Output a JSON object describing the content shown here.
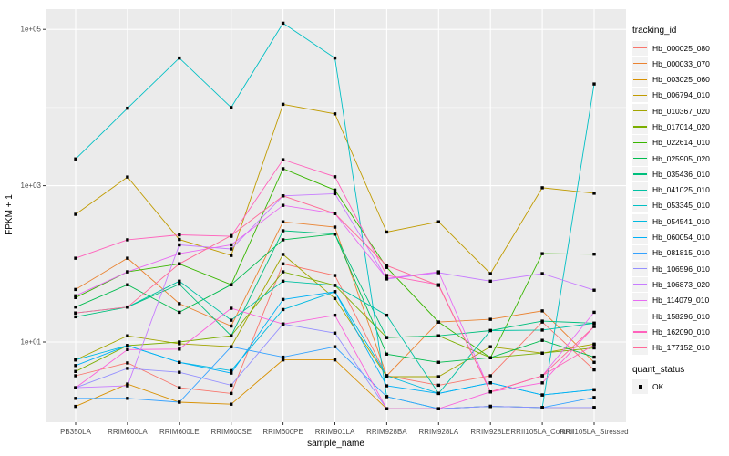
{
  "chart_data": {
    "type": "line",
    "title": "",
    "xlabel": "sample_name",
    "ylabel": "FPKM + 1",
    "x_categories": [
      "PB350LA",
      "RRIM600LA",
      "RRIM600LE",
      "RRIM600SE",
      "RRIM600PE",
      "RRIM901LA",
      "RRIM928BA",
      "RRIM928LA",
      "RRIM928LE",
      "RRII105LA_Control",
      "RRII105LA_Stressed"
    ],
    "y_axis": {
      "scale": "log10",
      "ticks": [
        {
          "label": "1e+05",
          "value": 100000
        },
        {
          "label": "1e+03",
          "value": 1000
        },
        {
          "label": "1e+01",
          "value": 10
        }
      ],
      "minor_breaks": [
        10000,
        100,
        1
      ],
      "ylim": [
        1,
        130000
      ]
    },
    "grid": true,
    "legend_position": "right",
    "panel_bg": "#EBEBEB",
    "grid_color": "#FFFFFF",
    "tick_text_color": "#4D4D4D",
    "point_marker": "filled-black-square",
    "legend": {
      "series_title": "tracking_id",
      "shape_title": "quant_status",
      "shape_items": [
        {
          "label": "OK",
          "shape": "black-square"
        }
      ]
    },
    "series": [
      {
        "name": "Hb_000025_080",
        "color": "#F8766D",
        "values": [
          3.7,
          5.4,
          2.6,
          2.2,
          100,
          71,
          3.7,
          2.8,
          3.7,
          18,
          4.4
        ]
      },
      {
        "name": "Hb_000033_070",
        "color": "#EA8331",
        "values": [
          47,
          118,
          31,
          16,
          345,
          295,
          3.7,
          18,
          19.5,
          25,
          5.5
        ]
      },
      {
        "name": "Hb_003025_060",
        "color": "#D89000",
        "values": [
          1.5,
          2.9,
          1.7,
          1.6,
          5.9,
          5.9,
          1.4,
          1.4,
          1.5,
          1.45,
          1.45
        ]
      },
      {
        "name": "Hb_006794_010",
        "color": "#C09B00",
        "values": [
          430,
          1290,
          205,
          128,
          11000,
          8300,
          255,
          345,
          75,
          940,
          800
        ]
      },
      {
        "name": "Hb_010367_020",
        "color": "#A3A500",
        "values": [
          5.9,
          12,
          9.5,
          8.7,
          132,
          36,
          3.6,
          3.6,
          8.7,
          7.2,
          9.4
        ]
      },
      {
        "name": "Hb_017014_020",
        "color": "#7CAE00",
        "values": [
          4.2,
          9,
          10,
          12,
          79,
          53,
          11.4,
          12,
          6.3,
          7.2,
          8.4
        ]
      },
      {
        "name": "Hb_022614_010",
        "color": "#39B600",
        "values": [
          37,
          79,
          100,
          54,
          1650,
          880,
          90,
          18,
          6.3,
          135,
          133
        ]
      },
      {
        "name": "Hb_025905_020",
        "color": "#00BB4E",
        "values": [
          28,
          54,
          24,
          54,
          203,
          240,
          7,
          5.5,
          6.3,
          10.5,
          6.4
        ]
      },
      {
        "name": "Hb_035436_010",
        "color": "#00BF7D",
        "values": [
          21,
          28,
          55,
          12,
          265,
          240,
          11.4,
          12,
          14,
          18.5,
          17.4
        ]
      },
      {
        "name": "Hb_041025_010",
        "color": "#00C1A3",
        "values": [
          23.5,
          28,
          60,
          19,
          60,
          53,
          22,
          2.2,
          14,
          14.2,
          17.4
        ]
      },
      {
        "name": "Hb_053345_010",
        "color": "#00BFC4",
        "values": [
          2200,
          9800,
          43000,
          10000,
          120000,
          43000,
          2,
          1.4,
          1.5,
          1.45,
          20000
        ]
      },
      {
        "name": "Hb_054541_010",
        "color": "#00BAE0",
        "values": [
          5.9,
          9,
          5.5,
          4.3,
          26,
          44,
          3.7,
          2.2,
          3,
          2.1,
          2.45
        ]
      },
      {
        "name": "Hb_060054_010",
        "color": "#00B0F6",
        "values": [
          5,
          9,
          5.5,
          4,
          35,
          44,
          2.75,
          2.2,
          3,
          2.1,
          2.45
        ]
      },
      {
        "name": "Hb_081815_010",
        "color": "#35A2FF",
        "values": [
          1.9,
          1.9,
          1.7,
          8.7,
          6.4,
          8.7,
          2,
          1.4,
          1.5,
          1.45,
          1.95
        ]
      },
      {
        "name": "Hb_106596_010",
        "color": "#9590FF",
        "values": [
          2.6,
          4.6,
          4.1,
          2.8,
          17,
          13,
          1.4,
          1.4,
          1.5,
          1.45,
          1.45
        ]
      },
      {
        "name": "Hb_106873_020",
        "color": "#C77CFF",
        "values": [
          2.6,
          2.75,
          175,
          155,
          740,
          790,
          64,
          77,
          60,
          75,
          46
        ]
      },
      {
        "name": "Hb_114079_010",
        "color": "#E76BF3",
        "values": [
          39,
          79,
          135,
          175,
          560,
          440,
          65,
          79,
          2.3,
          3.7,
          24
        ]
      },
      {
        "name": "Hb_158296_010",
        "color": "#FA62DB",
        "values": [
          2.6,
          8,
          8.1,
          27,
          17,
          22,
          1.4,
          1.4,
          2.3,
          3,
          15.8
        ]
      },
      {
        "name": "Hb_162090_010",
        "color": "#FF62BC",
        "values": [
          118,
          203,
          235,
          225,
          2150,
          1300,
          71,
          54,
          2.3,
          3.7,
          9.2
        ]
      },
      {
        "name": "Hb_177152_010",
        "color": "#FF6A98",
        "values": [
          23.5,
          28,
          100,
          230,
          740,
          440,
          95,
          53,
          2.3,
          3.7,
          15.8
        ]
      }
    ]
  }
}
